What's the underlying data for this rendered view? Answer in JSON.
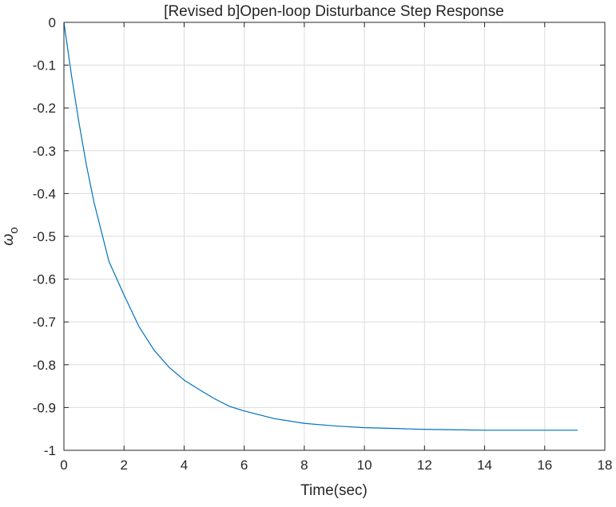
{
  "chart_data": {
    "type": "line",
    "title": "[Revised b]Open-loop Disturbance Step Response",
    "xlabel": "Time(sec)",
    "ylabel": {
      "base": "ω",
      "subscript": "o"
    },
    "xlim": [
      0,
      18
    ],
    "ylim": [
      -1,
      0
    ],
    "xticks": [
      0,
      2,
      4,
      6,
      8,
      10,
      12,
      14,
      16,
      18
    ],
    "yticks": [
      0,
      -0.1,
      -0.2,
      -0.3,
      -0.4,
      -0.5,
      -0.6,
      -0.7,
      -0.8,
      -0.9,
      -1
    ],
    "grid": true,
    "colors": {
      "line": "#0072BD",
      "grid": "#dcdcdc",
      "axes": "#262626"
    },
    "series": [
      {
        "x": [
          0,
          0.25,
          0.5,
          0.75,
          1,
          1.5,
          2,
          2.5,
          3,
          3.5,
          4,
          4.5,
          5,
          5.5,
          6,
          7,
          8,
          9,
          10,
          11,
          12,
          13,
          14,
          15,
          16,
          17.1
        ],
        "y": [
          0,
          -0.123,
          -0.234,
          -0.334,
          -0.42,
          -0.559,
          -0.637,
          -0.711,
          -0.766,
          -0.806,
          -0.836,
          -0.858,
          -0.879,
          -0.897,
          -0.908,
          -0.926,
          -0.937,
          -0.943,
          -0.947,
          -0.949,
          -0.951,
          -0.952,
          -0.953,
          -0.953,
          -0.953,
          -0.953
        ]
      }
    ]
  }
}
